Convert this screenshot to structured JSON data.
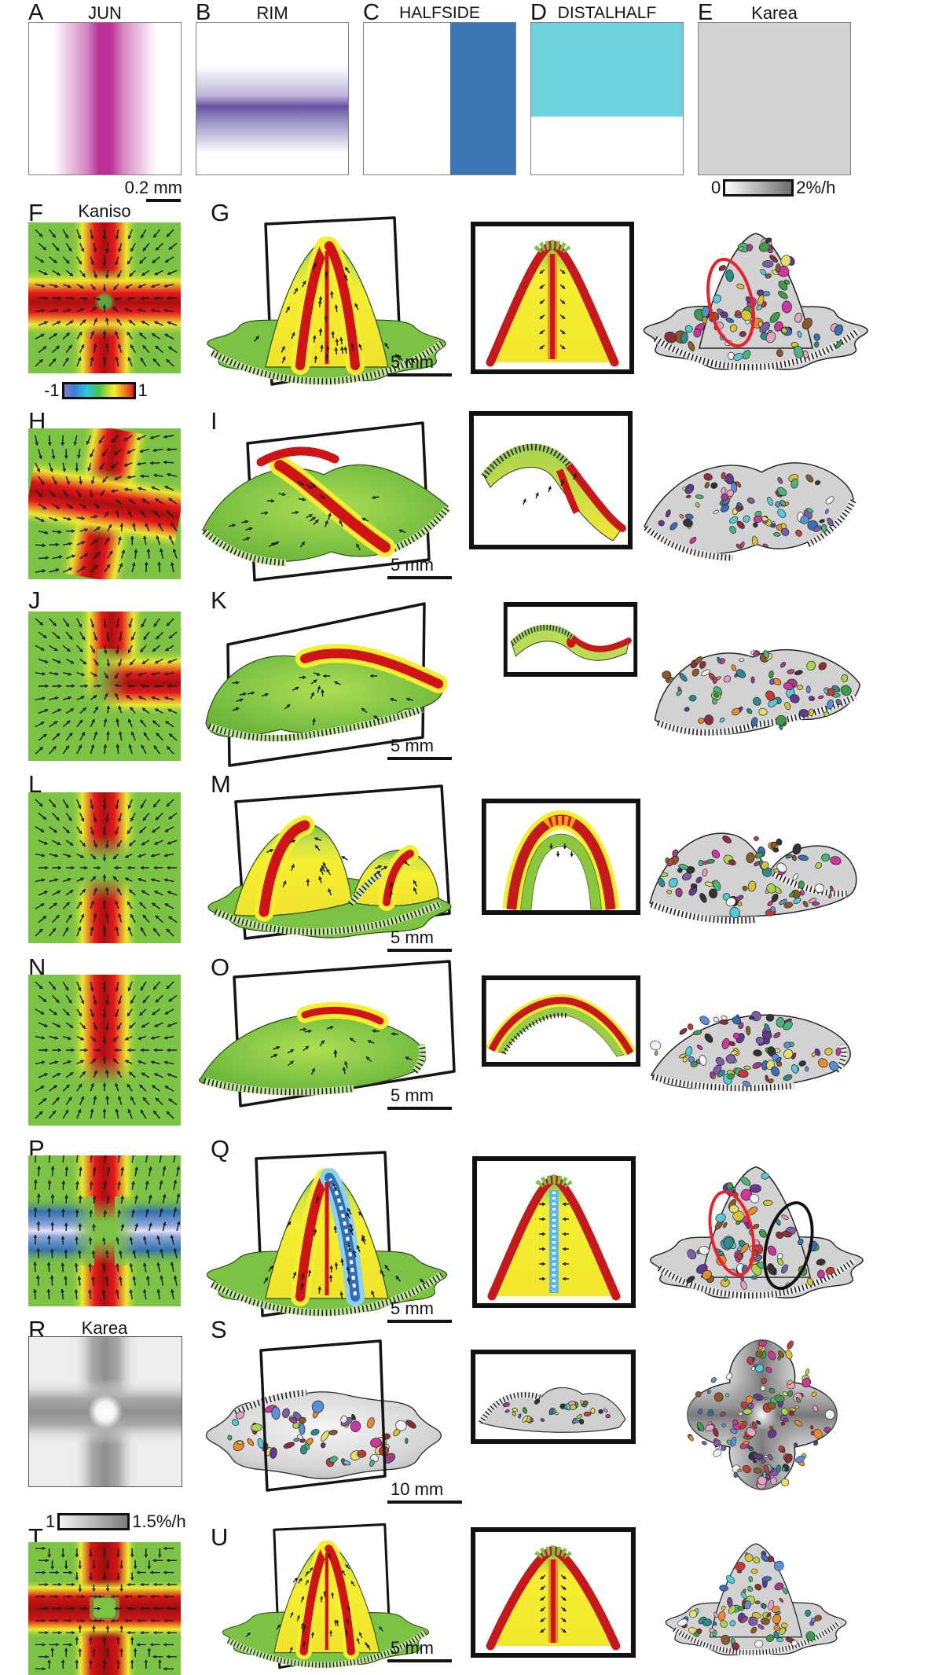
{
  "figure_title": "growth-field-simulation-figure",
  "colors": {
    "field_green": "#7cc244",
    "field_yellow": "#f5ee31",
    "field_red": "#e3191c",
    "field_dark_red": "#a8100f",
    "band_blue": "#2f6db6",
    "band_blue_core": "#e6e2f2",
    "jun_magenta": "#bd3097",
    "rim_purple": "#6a51a3",
    "halfside_blue": "#3d76b5",
    "distalhalf_cyan": "#6fd0de",
    "karea_gray": "#d2d2d2",
    "surface_gray": "#d2d2d2",
    "annotation_red": "#e8212a",
    "annotation_black": "#111111",
    "cell_palette": [
      "#7b5ea7",
      "#3f9b4a",
      "#57c8d8",
      "#c9379f",
      "#e88b2f",
      "#e4de6a",
      "#8c2f39",
      "#3b6fb5",
      "#e6a0c4",
      "#2e8b8b",
      "#8b5a2b",
      "#a8d34f",
      "#f2f2f2",
      "#62398e",
      "#c23b3b",
      "#d9c13a",
      "#4ab57a",
      "#9e3f86",
      "#5b8fd4",
      "#333333"
    ]
  },
  "top_row": {
    "panels": [
      {
        "letter": "A",
        "title": "JUN",
        "pattern": "vertical-magenta-stripe"
      },
      {
        "letter": "B",
        "title": "RIM",
        "pattern": "horizontal-purple-band"
      },
      {
        "letter": "C",
        "title": "HALFSIDE",
        "pattern": "blue-right-band"
      },
      {
        "letter": "D",
        "title": "DISTALHALF",
        "pattern": "cyan-top-half"
      },
      {
        "letter": "E",
        "title": "Karea",
        "pattern": "uniform-gray"
      }
    ],
    "scale_bar_label": "0.2 mm",
    "rate_colorbar": {
      "min_label": "0",
      "max_label": "2%/h"
    }
  },
  "rows": [
    {
      "letter": "F",
      "title": "Kaniso",
      "field": "red-cross",
      "arrows": "converge",
      "colorbar": {
        "min_label": "-1",
        "max_label": "1"
      },
      "mid_letter": "G",
      "scale_bar_label": "5 mm",
      "surface": "cone",
      "section": "peak",
      "cells": "cone",
      "annotations": [
        "red-ellipse"
      ]
    },
    {
      "letter": "H",
      "title": "",
      "field": "red-pinwheel",
      "arrows": "spiral",
      "mid_letter": "I",
      "scale_bar_label": "5 mm",
      "surface": "saddle",
      "section": "saddle-s",
      "cells": "saddle",
      "annotations": []
    },
    {
      "letter": "J",
      "title": "",
      "field": "red-bent-cross",
      "arrows": "converge",
      "mid_letter": "K",
      "scale_bar_label": "5 mm",
      "surface": "twist",
      "section": "twist-s",
      "cells": "twist",
      "annotations": []
    },
    {
      "letter": "L",
      "title": "",
      "field": "red-two-vertical",
      "arrows": "converge",
      "mid_letter": "M",
      "scale_bar_label": "5 mm",
      "surface": "double-arch",
      "section": "arch",
      "cells": "double-arch",
      "annotations": []
    },
    {
      "letter": "N",
      "title": "",
      "field": "red-one-vertical",
      "arrows": "converge",
      "mid_letter": "O",
      "scale_bar_label": "5 mm",
      "surface": "dome",
      "section": "low-arch",
      "cells": "dome",
      "annotations": []
    },
    {
      "letter": "P",
      "title": "",
      "field": "red-blue-cross",
      "arrows": "up",
      "mid_letter": "Q",
      "scale_bar_label": "5 mm",
      "surface": "cone-blue",
      "section": "peak-blue",
      "cells": "cone",
      "annotations": [
        "red-ellipse",
        "black-ellipse"
      ]
    },
    {
      "letter": "R",
      "title": "Karea",
      "field": "gray-cross",
      "arrows": "none",
      "colorbar": {
        "min_label": "1",
        "max_label": "1.5%/h"
      },
      "mid_letter": "S",
      "scale_bar_label": "10 mm",
      "surface": "gray-dome",
      "section": "gray-flat",
      "cells": "clover",
      "annotations": []
    },
    {
      "letter": "T",
      "title": "",
      "field": "red-cross-gap",
      "arrows": "axis",
      "mid_letter": "U",
      "scale_bar_label": "5 mm",
      "surface": "cone",
      "section": "peak",
      "cells": "cone",
      "annotations": []
    }
  ]
}
